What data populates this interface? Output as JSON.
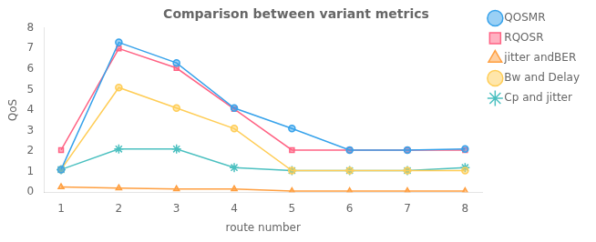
{
  "chart_data": {
    "type": "line",
    "title": "Comparison between variant metrics",
    "xlabel": "route number",
    "ylabel": "QoS",
    "x": [
      1,
      2,
      3,
      4,
      5,
      6,
      7,
      8
    ],
    "series": [
      {
        "name": "QOSMR",
        "values": [
          1.1,
          7.3,
          6.3,
          4.1,
          3.1,
          2.05,
          2.05,
          2.1
        ],
        "marker": "circle"
      },
      {
        "name": "RQOSR",
        "values": [
          2.05,
          7.0,
          6.05,
          4.05,
          2.05,
          2.05,
          2.05,
          2.05
        ],
        "marker": "square"
      },
      {
        "name": "jitter andBER",
        "values": [
          0.25,
          0.2,
          0.15,
          0.15,
          0.05,
          0.05,
          0.05,
          0.05
        ],
        "marker": "triangle"
      },
      {
        "name": "Bw and Delay",
        "values": [
          1.1,
          5.1,
          4.1,
          3.1,
          1.05,
          1.05,
          1.05,
          1.05
        ],
        "marker": "circle"
      },
      {
        "name": "Cp and jitter",
        "values": [
          1.1,
          2.1,
          2.1,
          1.2,
          1.05,
          1.05,
          1.05,
          1.2
        ],
        "marker": "star"
      }
    ],
    "xlim": [
      0.7,
      8.3
    ],
    "ylim": [
      0,
      8
    ],
    "xticks": [
      1,
      2,
      3,
      4,
      5,
      6,
      7,
      8
    ],
    "yticks": [
      0,
      1,
      2,
      3,
      4,
      5,
      6,
      7,
      8
    ],
    "grid": false,
    "legend": "right"
  }
}
